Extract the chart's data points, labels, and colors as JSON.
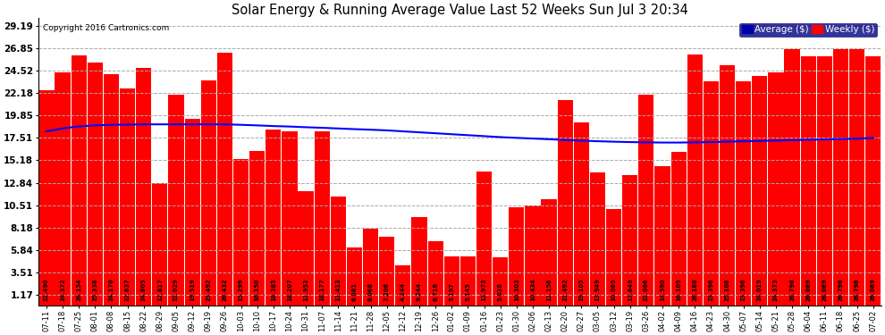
{
  "title": "Solar Energy & Running Average Value Last 52 Weeks Sun Jul 3 20:34",
  "copyright": "Copyright 2016 Cartronics.com",
  "bar_color": "#ff0000",
  "avg_line_color": "#0000ff",
  "background_color": "#ffffff",
  "plot_bg_color": "#ffffff",
  "legend_avg_bg": "#0000aa",
  "legend_weekly_bg": "#ff0000",
  "yticks": [
    1.17,
    3.51,
    5.84,
    8.18,
    10.51,
    12.84,
    15.18,
    17.51,
    19.85,
    22.18,
    24.52,
    26.85,
    29.19
  ],
  "ymin": 0.0,
  "ymax": 30.0,
  "categories": [
    "07-11",
    "07-18",
    "07-25",
    "08-01",
    "08-08",
    "08-15",
    "08-22",
    "08-29",
    "09-05",
    "09-12",
    "09-19",
    "09-26",
    "10-03",
    "10-10",
    "10-17",
    "10-24",
    "10-31",
    "11-07",
    "11-14",
    "11-21",
    "11-28",
    "12-05",
    "12-12",
    "12-19",
    "12-26",
    "01-02",
    "01-09",
    "01-16",
    "01-23",
    "01-30",
    "02-06",
    "02-13",
    "02-20",
    "02-27",
    "03-05",
    "03-12",
    "03-19",
    "03-26",
    "04-02",
    "04-09",
    "04-16",
    "04-23",
    "04-30",
    "05-07",
    "05-14",
    "05-21",
    "05-28",
    "06-04",
    "06-11",
    "06-18",
    "06-25",
    "07-02"
  ],
  "weekly_values": [
    22.49,
    24.372,
    26.154,
    25.338,
    24.17,
    22.637,
    24.805,
    12.817,
    22.029,
    19.519,
    23.492,
    26.432,
    15.299,
    16.15,
    18.385,
    18.207,
    11.953,
    18.177,
    11.413,
    6.081,
    8.068,
    7.206,
    4.244,
    9.244,
    6.718,
    5.197,
    5.145,
    13.973,
    5.038,
    10.303,
    10.434,
    11.156,
    21.492,
    19.105,
    13.949,
    10.065,
    13.649,
    22.066,
    14.59,
    16.105,
    26.188,
    23.396,
    25.108,
    23.396,
    24.019,
    24.373,
    26.796,
    26.069,
    26.069,
    26.796,
    26.796,
    26.069
  ],
  "avg_values": [
    18.2,
    18.5,
    18.72,
    18.82,
    18.88,
    18.9,
    18.93,
    18.93,
    18.93,
    18.93,
    18.93,
    18.93,
    18.88,
    18.82,
    18.75,
    18.7,
    18.63,
    18.57,
    18.5,
    18.43,
    18.37,
    18.3,
    18.2,
    18.1,
    18.0,
    17.9,
    17.8,
    17.7,
    17.6,
    17.52,
    17.45,
    17.38,
    17.3,
    17.23,
    17.17,
    17.12,
    17.08,
    17.05,
    17.03,
    17.03,
    17.05,
    17.08,
    17.12,
    17.16,
    17.2,
    17.24,
    17.28,
    17.32,
    17.36,
    17.4,
    17.44,
    17.51
  ],
  "figwidth": 9.9,
  "figheight": 3.75,
  "dpi": 100
}
